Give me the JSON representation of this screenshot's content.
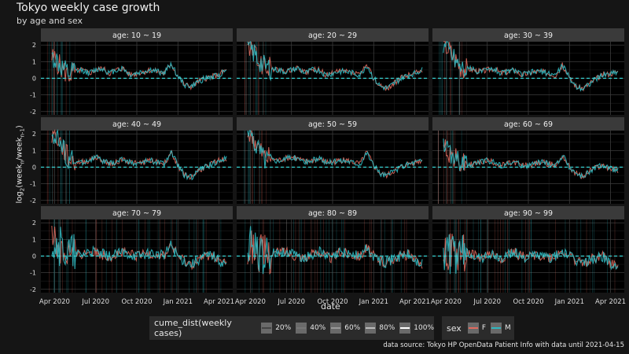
{
  "title": "Tokyo weekly case growth",
  "subtitle": "by age and sex",
  "caption": "data source: Tokyo HP OpenData Patient Info with data until 2021-04-15",
  "chart_data": {
    "type": "line",
    "xlabel": "date",
    "ylabel": "log2 week_n / week_n-1",
    "x_ticks": [
      "Apr 2020",
      "Jul 2020",
      "Oct 2020",
      "Jan 2021",
      "Apr 2021"
    ],
    "y_ticks": [
      2,
      1,
      0,
      -1,
      -2
    ],
    "ylim": [
      -2.2,
      2.2
    ],
    "hline": 0,
    "grid": true,
    "legend": {
      "cume_title": "cume_dist(weekly cases)",
      "cume_levels": [
        "20%",
        "40%",
        "60%",
        "80%",
        "100%"
      ],
      "sex_title": "sex",
      "sex_levels": [
        "F",
        "M"
      ]
    },
    "facets": [
      "age: 10 ~ 19",
      "age: 20 ~ 29",
      "age: 30 ~ 39",
      "age: 40 ~ 49",
      "age: 50 ~ 59",
      "age: 60 ~ 69",
      "age: 70 ~ 79",
      "age: 80 ~ 89",
      "age: 90 ~ 99"
    ],
    "series": [
      {
        "name": "F",
        "color": "#e06a5e"
      },
      {
        "name": "M",
        "color": "#2fb8c0"
      }
    ],
    "profile_months": [
      3,
      3.5,
      4,
      4.5,
      5,
      5.5,
      6,
      6.5,
      7,
      7.5,
      8,
      8.5,
      9,
      9.5,
      10,
      10.5,
      11,
      11.5,
      12,
      12.5,
      13,
      13.5,
      14,
      14.5,
      15,
      15.5
    ],
    "profiles": [
      [
        1.2,
        0.6,
        0.2,
        0.4,
        0.5,
        0.3,
        0.5,
        0.6,
        0.3,
        0.5,
        0.6,
        0.2,
        0.3,
        0.4,
        0.5,
        0.4,
        0.3,
        0.9,
        0.1,
        -0.4,
        -0.5,
        -0.2,
        0.0,
        0.1,
        0.2,
        0.5
      ],
      [
        1.8,
        1.2,
        0.7,
        0.6,
        0.5,
        0.4,
        0.5,
        0.6,
        0.3,
        0.5,
        0.5,
        0.2,
        0.3,
        0.4,
        0.4,
        0.3,
        0.2,
        0.8,
        0.0,
        -0.5,
        -0.6,
        -0.3,
        0.0,
        0.2,
        0.3,
        0.5
      ],
      [
        2.0,
        1.4,
        0.8,
        0.6,
        0.5,
        0.4,
        0.5,
        0.6,
        0.3,
        0.4,
        0.5,
        0.2,
        0.3,
        0.4,
        0.4,
        0.3,
        0.2,
        0.8,
        0.0,
        -0.5,
        -0.6,
        -0.3,
        0.0,
        0.2,
        0.3,
        0.4
      ],
      [
        2.0,
        1.3,
        0.5,
        0.3,
        0.3,
        0.4,
        0.6,
        0.4,
        0.2,
        0.3,
        0.5,
        0.3,
        0.2,
        0.3,
        0.4,
        0.3,
        0.2,
        0.9,
        0.1,
        -0.5,
        -0.6,
        -0.2,
        0.0,
        0.2,
        0.4,
        0.5
      ],
      [
        2.0,
        1.3,
        0.6,
        0.5,
        0.4,
        0.5,
        0.6,
        0.5,
        0.3,
        0.4,
        0.5,
        0.3,
        0.3,
        0.4,
        0.4,
        0.3,
        0.2,
        0.9,
        0.1,
        -0.4,
        -0.5,
        -0.2,
        0.0,
        0.2,
        0.3,
        0.4
      ],
      [
        1.2,
        0.6,
        0.2,
        0.1,
        0.2,
        0.3,
        0.4,
        0.3,
        0.1,
        0.2,
        0.3,
        0.1,
        0.1,
        0.2,
        0.3,
        0.2,
        0.1,
        0.7,
        0.0,
        -0.4,
        -0.6,
        -0.2,
        0.0,
        0.1,
        -0.1,
        -0.2
      ],
      [
        1.0,
        0.5,
        0.2,
        0.1,
        0.1,
        0.3,
        0.2,
        0.1,
        0.0,
        0.1,
        0.2,
        0.1,
        0.0,
        0.1,
        0.2,
        0.1,
        0.0,
        0.7,
        0.0,
        -0.3,
        -0.5,
        -0.2,
        0.0,
        0.1,
        -0.3,
        -0.4
      ],
      [
        0.6,
        0.3,
        0.0,
        0.1,
        0.2,
        0.3,
        0.1,
        0.0,
        -0.1,
        0.1,
        0.3,
        0.0,
        -0.1,
        0.2,
        0.2,
        0.1,
        0.0,
        0.5,
        0.0,
        -0.3,
        -0.4,
        -0.1,
        0.0,
        0.1,
        -0.3,
        -0.5
      ],
      [
        0.3,
        0.1,
        0.0,
        0.2,
        0.1,
        -0.2,
        0.1,
        0.0,
        -0.2,
        0.1,
        0.2,
        0.0,
        -0.1,
        0.1,
        0.0,
        -0.1,
        0.0,
        0.3,
        0.0,
        -0.3,
        -0.4,
        -0.2,
        -0.1,
        0.0,
        -0.5,
        -0.6
      ]
    ]
  }
}
